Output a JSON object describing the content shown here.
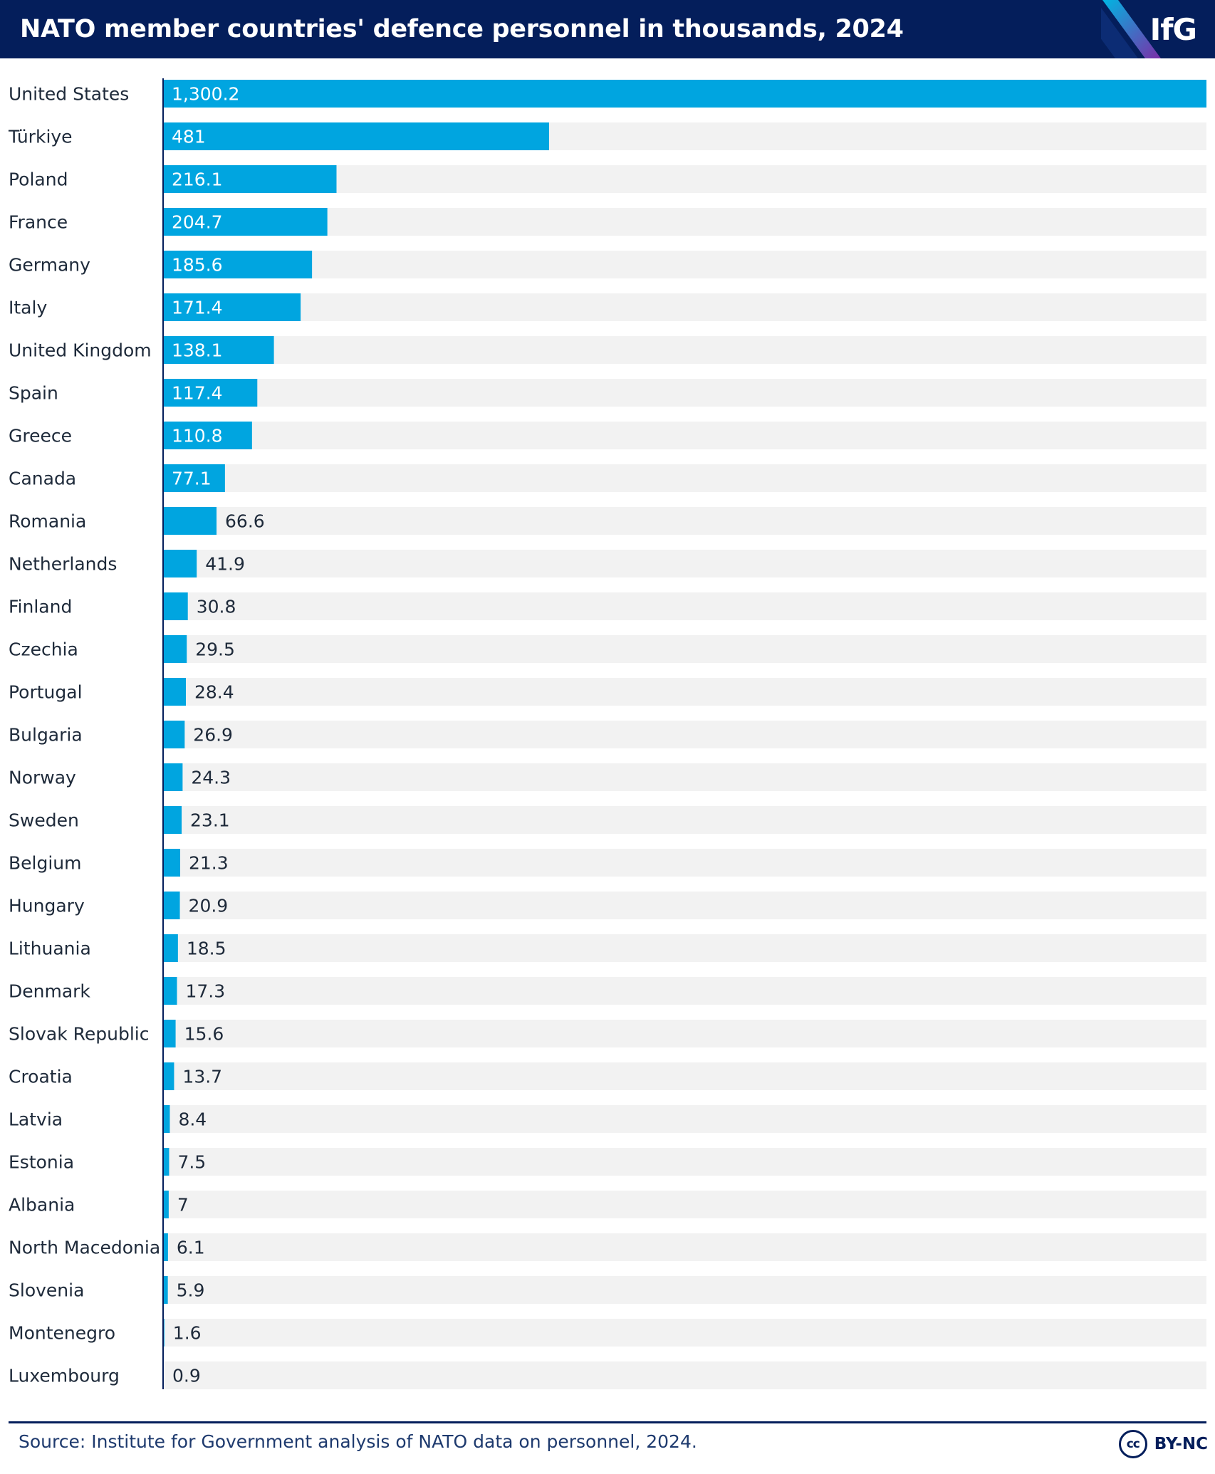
{
  "header": {
    "title": "NATO member countries' defence personnel in thousands, 2024",
    "logo": "IfG"
  },
  "colors": {
    "header_bg": "#041E5B",
    "bar": "#00A5E0",
    "track": "#F2F2F2",
    "axis": "#041E5B",
    "logo_stripe_1": "#00B5E2",
    "logo_stripe_2": "#7B2FA8"
  },
  "chart_data": {
    "type": "bar",
    "orientation": "horizontal",
    "title": "NATO member countries' defence personnel in thousands, 2024",
    "xlabel": "",
    "ylabel": "",
    "xlim": [
      0,
      1300.2
    ],
    "grid": false,
    "categories": [
      "United States",
      "Türkiye",
      "Poland",
      "France",
      "Germany",
      "Italy",
      "United Kingdom",
      "Spain",
      "Greece",
      "Canada",
      "Romania",
      "Netherlands",
      "Finland",
      "Czechia",
      "Portugal",
      "Bulgaria",
      "Norway",
      "Sweden",
      "Belgium",
      "Hungary",
      "Lithuania",
      "Denmark",
      "Slovak Republic",
      "Croatia",
      "Latvia",
      "Estonia",
      "Albania",
      "North Macedonia",
      "Slovenia",
      "Montenegro",
      "Luxembourg"
    ],
    "values": [
      1300.2,
      481,
      216.1,
      204.7,
      185.6,
      171.4,
      138.1,
      117.4,
      110.8,
      77.1,
      66.6,
      41.9,
      30.8,
      29.5,
      28.4,
      26.9,
      24.3,
      23.1,
      21.3,
      20.9,
      18.5,
      17.3,
      15.6,
      13.7,
      8.4,
      7.5,
      7,
      6.1,
      5.9,
      1.6,
      0.9
    ],
    "value_labels": [
      "1,300.2",
      "481",
      "216.1",
      "204.7",
      "185.6",
      "171.4",
      "138.1",
      "117.4",
      "110.8",
      "77.1",
      "66.6",
      "41.9",
      "30.8",
      "29.5",
      "28.4",
      "26.9",
      "24.3",
      "23.1",
      "21.3",
      "20.9",
      "18.5",
      "17.3",
      "15.6",
      "13.7",
      "8.4",
      "7.5",
      "7",
      "6.1",
      "5.9",
      "1.6",
      "0.9"
    ]
  },
  "footer": {
    "source": "Source: Institute for Government analysis of NATO data on personnel, 2024.",
    "license_icon": "cc",
    "license": "BY-NC"
  }
}
